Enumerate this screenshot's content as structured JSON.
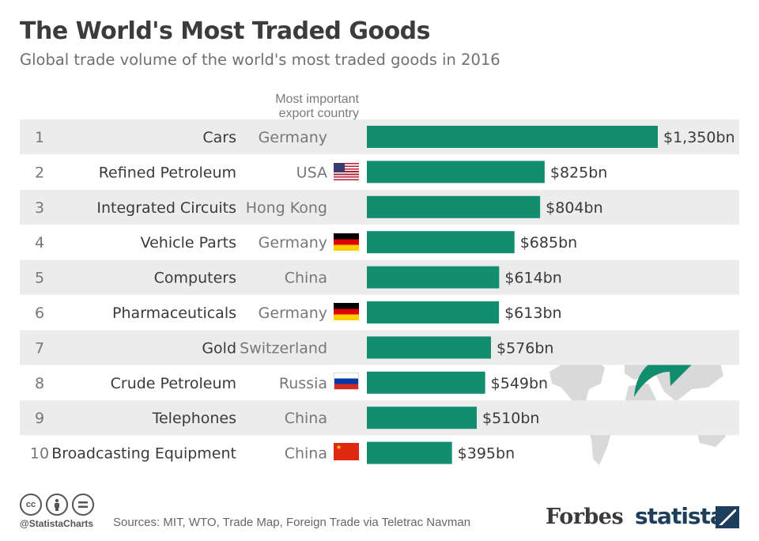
{
  "title": "The World's Most Traded Goods",
  "subtitle": "Global trade volume of the world's most traded goods in 2016",
  "column_header": "Most important export country",
  "colors": {
    "bar": "#128d6f",
    "row_stripe": "#ececec",
    "text": "#3a3a3a",
    "muted": "#777777"
  },
  "chart_data": {
    "type": "bar",
    "orientation": "horizontal",
    "title": "The World's Most Traded Goods",
    "subtitle": "Global trade volume of the world's most traded goods in 2016",
    "unit": "$bn",
    "xlim": [
      0,
      1350
    ],
    "rows": [
      {
        "rank": "1",
        "category": "Cars",
        "country": "Germany",
        "flag": "de",
        "value": 1350,
        "label": "$1,350bn"
      },
      {
        "rank": "2",
        "category": "Refined Petroleum",
        "country": "USA",
        "flag": "us",
        "value": 825,
        "label": "$825bn"
      },
      {
        "rank": "3",
        "category": "Integrated Circuits",
        "country": "Hong Kong",
        "flag": "hk",
        "value": 804,
        "label": "$804bn"
      },
      {
        "rank": "4",
        "category": "Vehicle Parts",
        "country": "Germany",
        "flag": "de",
        "value": 685,
        "label": "$685bn"
      },
      {
        "rank": "5",
        "category": "Computers",
        "country": "China",
        "flag": "cn",
        "value": 614,
        "label": "$614bn"
      },
      {
        "rank": "6",
        "category": "Pharmaceuticals",
        "country": "Germany",
        "flag": "de",
        "value": 613,
        "label": "$613bn"
      },
      {
        "rank": "7",
        "category": "Gold",
        "country": "Switzerland",
        "flag": "ch",
        "value": 576,
        "label": "$576bn"
      },
      {
        "rank": "8",
        "category": "Crude Petroleum",
        "country": "Russia",
        "flag": "ru",
        "value": 549,
        "label": "$549bn"
      },
      {
        "rank": "9",
        "category": "Telephones",
        "country": "China",
        "flag": "cn",
        "value": 510,
        "label": "$510bn"
      },
      {
        "rank": "10",
        "category": "Broadcasting Equipment",
        "country": "China",
        "flag": "cn",
        "value": 395,
        "label": "$395bn"
      }
    ]
  },
  "footer": {
    "license_icons": [
      "cc-icon",
      "attribution-icon",
      "no-derivatives-icon"
    ],
    "handle": "@StatistaCharts",
    "sources": "Sources:  MIT, WTO, Trade Map, Foreign Trade via Teletrac Navman",
    "forbes_logo": "Forbes",
    "statista_logo": "statista"
  }
}
